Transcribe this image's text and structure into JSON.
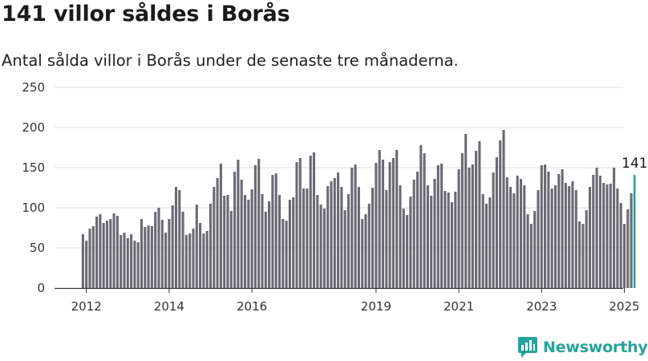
{
  "header": {
    "title": "141 villor såldes i Borås",
    "subtitle": "Antal sålda villor i Borås under de senaste tre månaderna."
  },
  "brand": {
    "name": "Newsworthy"
  },
  "colors": {
    "bar": "#6b6a72",
    "highlight": "#21a29b",
    "grid": "#dcdcdc",
    "axis": "#333333",
    "brand": "#27a39a"
  },
  "chart_data": {
    "type": "bar",
    "ylim": [
      0,
      250
    ],
    "yticks": [
      "0",
      "50",
      "100",
      "150",
      "200",
      "250"
    ],
    "xticks": [
      {
        "label": "2012",
        "at": "2012-01"
      },
      {
        "label": "2014",
        "at": "2014-01"
      },
      {
        "label": "2016",
        "at": "2016-01"
      },
      {
        "label": "2019",
        "at": "2019-01"
      },
      {
        "label": "2021",
        "at": "2021-01"
      },
      {
        "label": "2023",
        "at": "2023-01"
      },
      {
        "label": "2025",
        "at": "2025-01"
      }
    ],
    "start": "2011-12",
    "end": "2025-05",
    "highlight_label": "141",
    "values": [
      67,
      59,
      74,
      77,
      89,
      92,
      81,
      84,
      86,
      93,
      90,
      66,
      69,
      62,
      67,
      59,
      57,
      86,
      76,
      78,
      77,
      95,
      100,
      85,
      69,
      86,
      103,
      126,
      122,
      95,
      66,
      68,
      74,
      104,
      81,
      68,
      71,
      105,
      126,
      137,
      155,
      115,
      116,
      96,
      145,
      160,
      135,
      116,
      110,
      123,
      153,
      161,
      117,
      95,
      108,
      141,
      143,
      116,
      86,
      84,
      110,
      113,
      157,
      162,
      124,
      124,
      165,
      169,
      116,
      104,
      99,
      127,
      133,
      137,
      144,
      126,
      97,
      117,
      150,
      154,
      126,
      86,
      92,
      105,
      125,
      156,
      172,
      160,
      122,
      157,
      162,
      172,
      128,
      99,
      91,
      114,
      135,
      145,
      178,
      168,
      128,
      115,
      136,
      153,
      155,
      121,
      119,
      107,
      120,
      148,
      168,
      192,
      150,
      154,
      171,
      183,
      117,
      105,
      113,
      144,
      163,
      184,
      197,
      138,
      126,
      118,
      140,
      136,
      128,
      92,
      80,
      96,
      122,
      153,
      154,
      145,
      124,
      128,
      142,
      148,
      131,
      127,
      133,
      122,
      83,
      80,
      97,
      126,
      141,
      150,
      140,
      131,
      129,
      130,
      150,
      124,
      106,
      80,
      98,
      118,
      141
    ]
  }
}
